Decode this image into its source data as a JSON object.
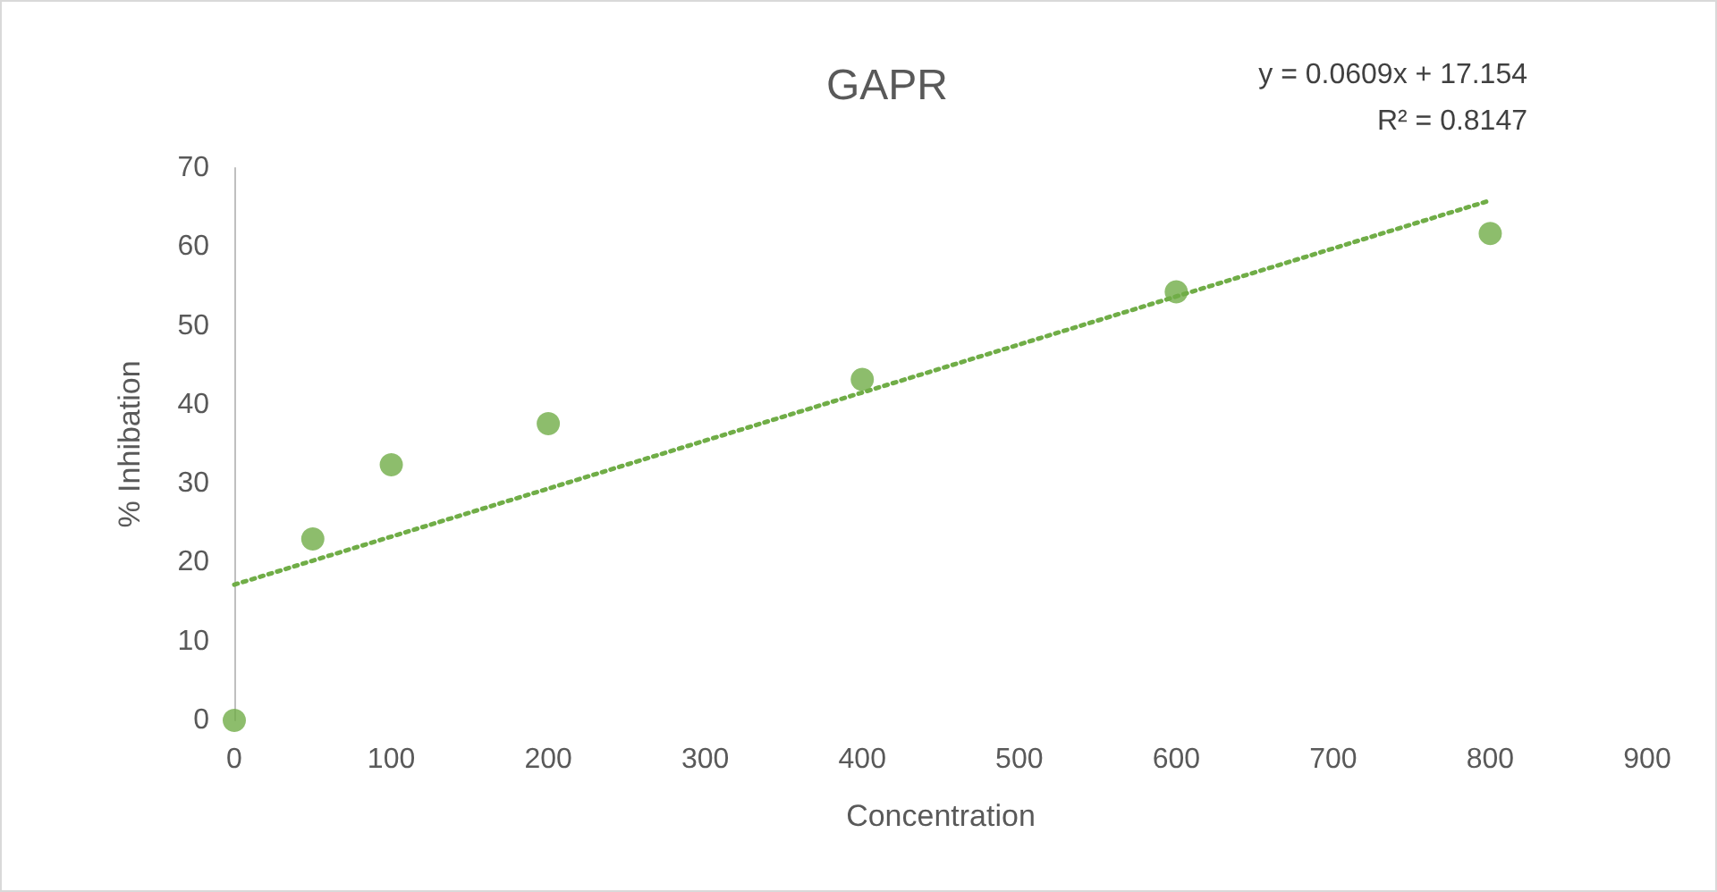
{
  "chart_data": {
    "type": "scatter",
    "title": "GAPR",
    "xlabel": "Concentration",
    "ylabel": "% Inhibation",
    "annotations": [
      "y = 0.0609x + 17.154",
      "R² = 0.8147"
    ],
    "series": [
      {
        "color": "#70ad47",
        "marker": "circle",
        "x": [
          0,
          50,
          100,
          200,
          400,
          600,
          800
        ],
        "values": [
          0,
          23,
          32.4,
          37.6,
          43.2,
          54.3,
          61.7
        ]
      },
      {
        "type": "line",
        "color": "#70ad47",
        "marker": "none",
        "line_style": "dotted",
        "x": [
          0,
          800
        ],
        "values": [
          17.2,
          65.9
        ]
      }
    ],
    "xlim": [
      0,
      900
    ],
    "xticks": [
      0,
      100,
      200,
      300,
      400,
      500,
      600,
      700,
      800,
      900
    ],
    "ylim": [
      0,
      70
    ],
    "yticks": [
      0,
      10,
      20,
      30,
      40,
      50,
      60,
      70
    ],
    "grid": false
  }
}
